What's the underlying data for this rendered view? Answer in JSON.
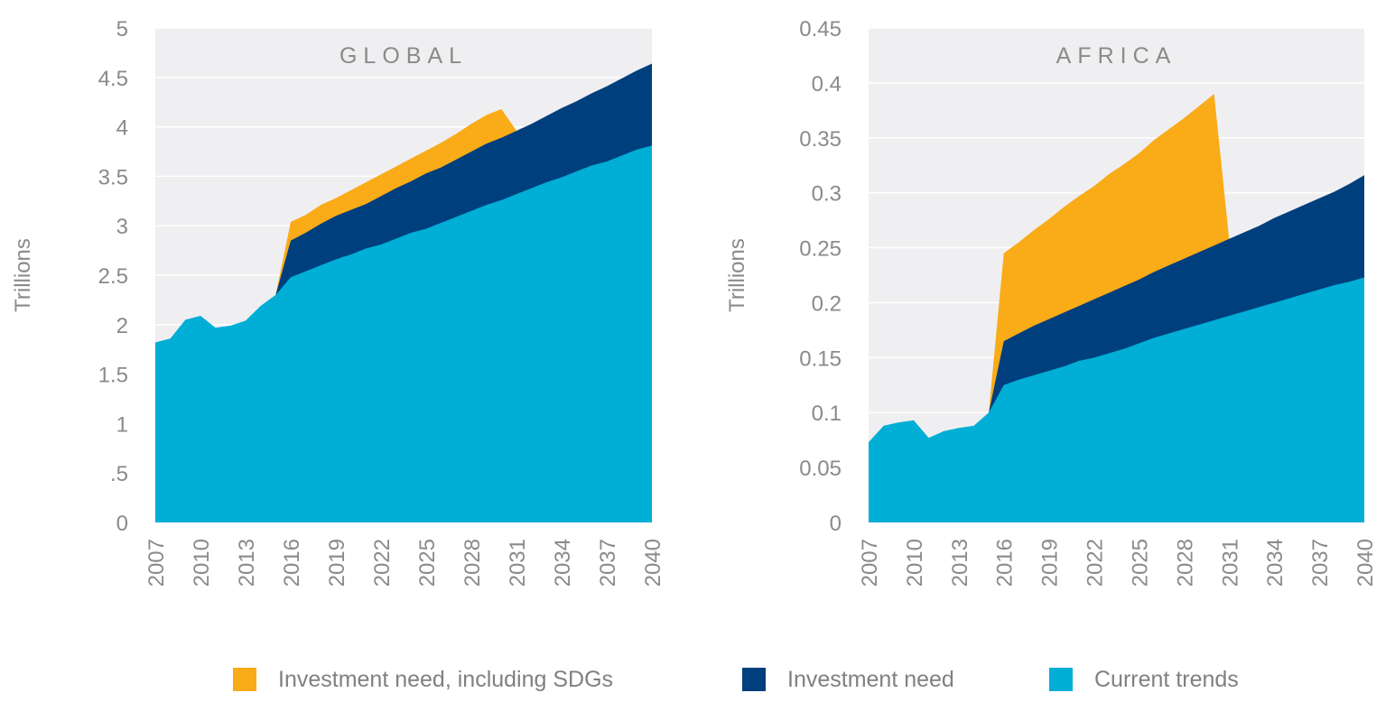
{
  "chart_data": [
    {
      "type": "area",
      "title": "GLOBAL",
      "ylabel": "Trillions",
      "ylim": [
        0,
        5
      ],
      "yticks": [
        0,
        0.5,
        1,
        1.5,
        2,
        2.5,
        3,
        3.5,
        4,
        4.5,
        5
      ],
      "ytick_labels": [
        "0",
        ".5",
        "1",
        "1.5",
        "2",
        "2.5",
        "3",
        "3.5",
        "4",
        "4.5",
        "5"
      ],
      "xlim": [
        2007,
        2040
      ],
      "xticks": [
        "2007",
        "2010",
        "2013",
        "2016",
        "2019",
        "2022",
        "2025",
        "2028",
        "2031",
        "2034",
        "2037",
        "2040"
      ],
      "grid": true,
      "series": [
        {
          "name": "Current trends",
          "color": "#00AED6",
          "x": [
            2007,
            2008,
            2009,
            2010,
            2011,
            2012,
            2013,
            2014,
            2015,
            2016,
            2017,
            2018,
            2019,
            2020,
            2021,
            2022,
            2023,
            2024,
            2025,
            2026,
            2027,
            2028,
            2029,
            2030,
            2031,
            2032,
            2033,
            2034,
            2035,
            2036,
            2037,
            2038,
            2039,
            2040
          ],
          "values": [
            1.82,
            1.86,
            2.05,
            2.09,
            1.97,
            1.99,
            2.04,
            2.19,
            2.3,
            2.48,
            2.54,
            2.6,
            2.66,
            2.71,
            2.77,
            2.81,
            2.87,
            2.93,
            2.97,
            3.03,
            3.09,
            3.15,
            3.21,
            3.26,
            3.32,
            3.38,
            3.44,
            3.49,
            3.55,
            3.61,
            3.65,
            3.71,
            3.77,
            3.81
          ]
        },
        {
          "name": "Investment need",
          "color": "#003F7D",
          "x": [
            2015,
            2016,
            2017,
            2018,
            2019,
            2020,
            2021,
            2022,
            2023,
            2024,
            2025,
            2026,
            2027,
            2028,
            2029,
            2030,
            2031,
            2032,
            2033,
            2034,
            2035,
            2036,
            2037,
            2038,
            2039,
            2040
          ],
          "values": [
            2.3,
            2.85,
            2.93,
            3.02,
            3.1,
            3.16,
            3.22,
            3.3,
            3.38,
            3.45,
            3.53,
            3.59,
            3.67,
            3.75,
            3.83,
            3.89,
            3.96,
            4.03,
            4.11,
            4.19,
            4.26,
            4.34,
            4.41,
            4.49,
            4.57,
            4.64
          ]
        },
        {
          "name": "Investment need, including SDGs",
          "color": "#FAAB18",
          "x": [
            2015,
            2016,
            2017,
            2018,
            2019,
            2020,
            2021,
            2022,
            2023,
            2024,
            2025,
            2026,
            2027,
            2028,
            2029,
            2030,
            2031
          ],
          "values": [
            2.3,
            3.04,
            3.11,
            3.21,
            3.28,
            3.36,
            3.44,
            3.52,
            3.6,
            3.68,
            3.76,
            3.84,
            3.93,
            4.03,
            4.12,
            4.18,
            3.96
          ]
        }
      ]
    },
    {
      "type": "area",
      "title": "AFRICA",
      "ylabel": "Trillions",
      "ylim": [
        0,
        0.45
      ],
      "yticks": [
        0,
        0.05,
        0.1,
        0.15,
        0.2,
        0.25,
        0.3,
        0.35,
        0.4,
        0.45
      ],
      "ytick_labels": [
        "0",
        "0.05",
        "0.1",
        "0.15",
        "0.2",
        "0.25",
        "0.3",
        "0.35",
        "0.4",
        "0.45"
      ],
      "xlim": [
        2007,
        2040
      ],
      "xticks": [
        "2007",
        "2010",
        "2013",
        "2016",
        "2019",
        "2022",
        "2025",
        "2028",
        "2031",
        "2034",
        "2037",
        "2040"
      ],
      "grid": true,
      "series": [
        {
          "name": "Current trends",
          "color": "#00AED6",
          "x": [
            2007,
            2008,
            2009,
            2010,
            2011,
            2012,
            2013,
            2014,
            2015,
            2016,
            2017,
            2018,
            2019,
            2020,
            2021,
            2022,
            2023,
            2024,
            2025,
            2026,
            2027,
            2028,
            2029,
            2030,
            2031,
            2032,
            2033,
            2034,
            2035,
            2036,
            2037,
            2038,
            2039,
            2040
          ],
          "values": [
            0.073,
            0.088,
            0.091,
            0.093,
            0.077,
            0.083,
            0.086,
            0.088,
            0.1,
            0.125,
            0.13,
            0.134,
            0.138,
            0.142,
            0.147,
            0.15,
            0.154,
            0.158,
            0.163,
            0.168,
            0.172,
            0.176,
            0.18,
            0.184,
            0.188,
            0.192,
            0.196,
            0.2,
            0.204,
            0.208,
            0.212,
            0.216,
            0.219,
            0.223
          ]
        },
        {
          "name": "Investment need",
          "color": "#003F7D",
          "x": [
            2015,
            2016,
            2017,
            2018,
            2019,
            2020,
            2021,
            2022,
            2023,
            2024,
            2025,
            2026,
            2027,
            2028,
            2029,
            2030,
            2031,
            2032,
            2033,
            2034,
            2035,
            2036,
            2037,
            2038,
            2039,
            2040
          ],
          "values": [
            0.1,
            0.165,
            0.172,
            0.179,
            0.185,
            0.191,
            0.197,
            0.203,
            0.209,
            0.215,
            0.221,
            0.228,
            0.234,
            0.24,
            0.246,
            0.252,
            0.258,
            0.264,
            0.27,
            0.277,
            0.283,
            0.289,
            0.295,
            0.301,
            0.308,
            0.316
          ]
        },
        {
          "name": "Investment need, including SDGs",
          "color": "#FAAB18",
          "x": [
            2015,
            2016,
            2017,
            2018,
            2019,
            2020,
            2021,
            2022,
            2023,
            2024,
            2025,
            2026,
            2027,
            2028,
            2029,
            2030,
            2031
          ],
          "values": [
            0.1,
            0.245,
            0.255,
            0.266,
            0.276,
            0.287,
            0.297,
            0.306,
            0.317,
            0.326,
            0.336,
            0.348,
            0.358,
            0.368,
            0.379,
            0.39,
            0.258
          ]
        }
      ]
    }
  ],
  "legend": {
    "placement": "bottom",
    "items": [
      {
        "label": "Investment need, including SDGs",
        "color": "#FAAB18"
      },
      {
        "label": "Investment need",
        "color": "#003F7D"
      },
      {
        "label": "Current trends",
        "color": "#00AED6"
      }
    ]
  }
}
